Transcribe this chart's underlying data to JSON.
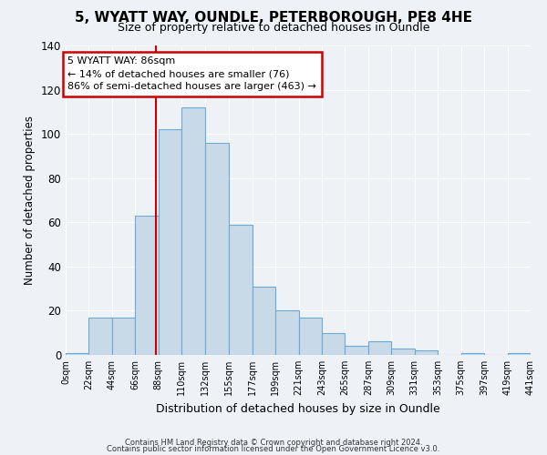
{
  "title": "5, WYATT WAY, OUNDLE, PETERBOROUGH, PE8 4HE",
  "subtitle": "Size of property relative to detached houses in Oundle",
  "xlabel": "Distribution of detached houses by size in Oundle",
  "ylabel": "Number of detached properties",
  "bar_color": "#c8d9e8",
  "bar_edge_color": "#6aaad4",
  "background_color": "#eef2f7",
  "grid_color": "#ffffff",
  "bin_edges": [
    0,
    22,
    44,
    66,
    88,
    110,
    132,
    155,
    177,
    199,
    221,
    243,
    265,
    287,
    309,
    331,
    353,
    375,
    397,
    419,
    441
  ],
  "bin_labels": [
    "0sqm",
    "22sqm",
    "44sqm",
    "66sqm",
    "88sqm",
    "110sqm",
    "132sqm",
    "155sqm",
    "177sqm",
    "199sqm",
    "221sqm",
    "243sqm",
    "265sqm",
    "287sqm",
    "309sqm",
    "331sqm",
    "353sqm",
    "375sqm",
    "397sqm",
    "419sqm",
    "441sqm"
  ],
  "counts": [
    1,
    17,
    17,
    63,
    102,
    112,
    96,
    59,
    31,
    20,
    17,
    10,
    4,
    6,
    3,
    2,
    0,
    1,
    0,
    1
  ],
  "property_size": 86,
  "vline_color": "#cc0000",
  "annotation_line1": "5 WYATT WAY: 86sqm",
  "annotation_line2": "← 14% of detached houses are smaller (76)",
  "annotation_line3": "86% of semi-detached houses are larger (463) →",
  "annotation_box_edgecolor": "#cc0000",
  "annotation_box_facecolor": "#ffffff",
  "ylim": [
    0,
    140
  ],
  "yticks": [
    0,
    20,
    40,
    60,
    80,
    100,
    120,
    140
  ],
  "footer1": "Contains HM Land Registry data © Crown copyright and database right 2024.",
  "footer2": "Contains public sector information licensed under the Open Government Licence v3.0."
}
